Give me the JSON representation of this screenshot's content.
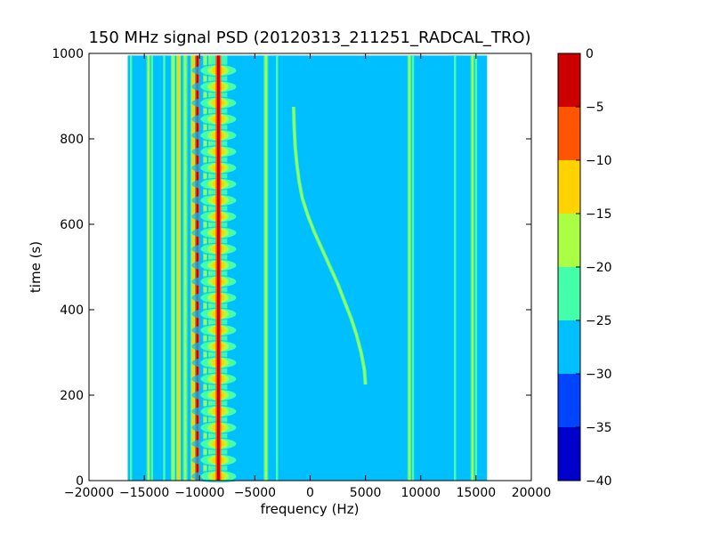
{
  "chart_data": {
    "type": "heatmap",
    "title": "150 MHz signal PSD (20120313_211251_RADCAL_TRO)",
    "xlabel": "frequency (Hz)",
    "ylabel": "time (s)",
    "xlim": [
      -20000,
      20000
    ],
    "ylim": [
      0,
      1000
    ],
    "x_ticks": [
      -20000,
      -15000,
      -10000,
      -5000,
      0,
      5000,
      10000,
      15000,
      20000
    ],
    "x_tick_labels": [
      "−20000",
      "−15000",
      "−10000",
      "−5000",
      "0",
      "5000",
      "10000",
      "15000",
      "20000"
    ],
    "y_ticks": [
      0,
      200,
      400,
      600,
      800,
      1000
    ],
    "y_tick_labels": [
      "0",
      "200",
      "400",
      "600",
      "800",
      "1000"
    ],
    "data_extent": {
      "freq_min": -16500,
      "freq_max": 16000,
      "time_min": 0,
      "time_max": 995
    },
    "colorbar": {
      "levels": [
        -40,
        -35,
        -30,
        -25,
        -20,
        -15,
        -10,
        -5,
        0
      ],
      "tick_labels": [
        "−40",
        "−35",
        "−30",
        "−25",
        "−20",
        "−15",
        "−10",
        "−5",
        "0"
      ],
      "colors": [
        "#0000cc",
        "#0044ff",
        "#00bfff",
        "#44ffaa",
        "#aaff44",
        "#ffd200",
        "#ff5500",
        "#cc0000"
      ]
    },
    "background_level_db": -27.5,
    "steady_lines": [
      {
        "freq": -16200,
        "level_db": -22
      },
      {
        "freq": -14600,
        "level_db": -17
      },
      {
        "freq": -14300,
        "level_db": -22
      },
      {
        "freq": -13200,
        "level_db": -22
      },
      {
        "freq": -12400,
        "level_db": -17
      },
      {
        "freq": -11900,
        "level_db": -12
      },
      {
        "freq": -11300,
        "level_db": -17
      },
      {
        "freq": -10600,
        "level_db": -12
      },
      {
        "freq": -10200,
        "level_db": -2
      },
      {
        "freq": -9500,
        "level_db": -17
      },
      {
        "freq": -9000,
        "level_db": -12
      },
      {
        "freq": -4000,
        "level_db": -17
      },
      {
        "freq": -3000,
        "level_db": -22
      },
      {
        "freq": 9000,
        "level_db": -17
      },
      {
        "freq": 9300,
        "level_db": -22
      },
      {
        "freq": 13100,
        "level_db": -22
      },
      {
        "freq": 14700,
        "level_db": -17
      },
      {
        "freq": 15000,
        "level_db": -22
      }
    ],
    "carrier": {
      "freq": -8300,
      "level_db": -2,
      "period_s": 38
    },
    "drifting_signal": {
      "level_db": -17,
      "points": [
        {
          "time": 225,
          "freq": 5000
        },
        {
          "time": 260,
          "freq": 4900
        },
        {
          "time": 300,
          "freq": 4600
        },
        {
          "time": 340,
          "freq": 4200
        },
        {
          "time": 380,
          "freq": 3700
        },
        {
          "time": 420,
          "freq": 3100
        },
        {
          "time": 460,
          "freq": 2500
        },
        {
          "time": 500,
          "freq": 1800
        },
        {
          "time": 540,
          "freq": 1100
        },
        {
          "time": 580,
          "freq": 400
        },
        {
          "time": 620,
          "freq": -200
        },
        {
          "time": 660,
          "freq": -700
        },
        {
          "time": 700,
          "freq": -1000
        },
        {
          "time": 740,
          "freq": -1200
        },
        {
          "time": 780,
          "freq": -1350
        },
        {
          "time": 830,
          "freq": -1450
        },
        {
          "time": 875,
          "freq": -1500
        }
      ]
    }
  }
}
